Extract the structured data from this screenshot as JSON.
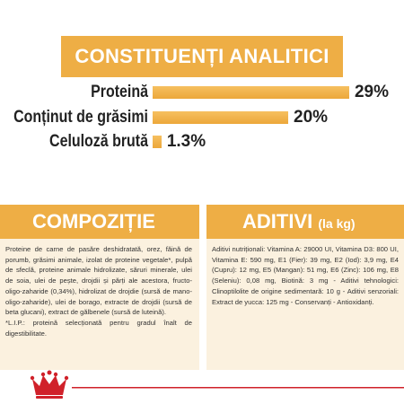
{
  "title": "CONSTITUENȚI ANALITICI",
  "constituents": [
    {
      "name": "Proteină",
      "value": 29,
      "label": "29%"
    },
    {
      "name": "Conținut de grăsimi",
      "value": 20,
      "label": "20%"
    },
    {
      "name": "Celuloză brută",
      "value": 1.3,
      "label": "1.3%"
    }
  ],
  "composition": {
    "title": "COMPOZIȚIE",
    "paragraphs": [
      "Proteine de carne de pasăre deshidratată, orez, făină de porumb, grăsimi animale, izolat de proteine vegetale*, pulpă de sfeclă, proteine animale hidrolizate, săruri minerale, ulei de soia, ulei de pește, drojdii și părți ale acestora, fructo-oligo-zaharide (0,34%), hidrolizat de drojdie (sursă de mano-oligo-zaharide), ulei de borago, extracte de drojdii (sursă de beta glucani), extract de gălbenele (sursă de luteină).",
      "*L.I.P.: proteină selecționată pentru gradul înalt de digestibilitate."
    ]
  },
  "additives": {
    "title": "ADITIVI",
    "unit": "(la kg)",
    "text": "Aditivi nutriționali: Vitamina A: 29000 UI, Vitamina D3: 800 UI, Vitamina E: 590 mg, E1 (Fier): 39 mg, E2 (Iod): 3,9 mg, E4 (Cupru): 12 mg, E5 (Mangan): 51 mg, E6 (Zinc): 106 mg, E8 (Seleniu): 0,08 mg, Biotină: 3 mg - Aditivi tehnologici: Clinoptilolite de origine sedimentară: 10 g - Aditivi senzoriali: Extract de yucca: 125 mg - Conservanți - Antioxidanți."
  }
}
